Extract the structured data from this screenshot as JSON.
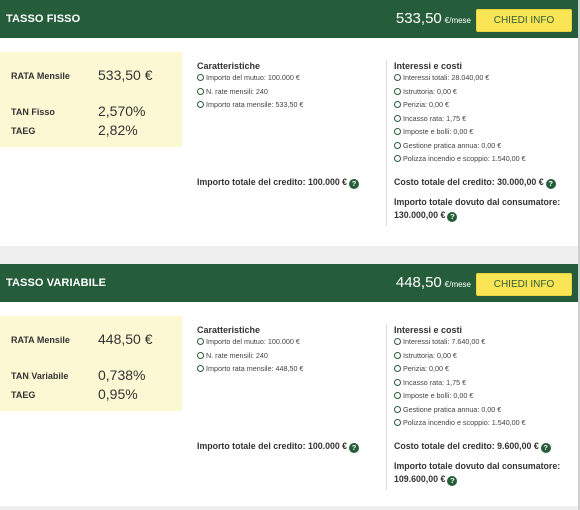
{
  "offers": [
    {
      "title": "TASSO FISSO",
      "monthly": "533,50",
      "unit": "€/mese",
      "cta": "CHIEDI INFO",
      "rate_label": "RATA Mensile",
      "rate_value": "533,50 €",
      "tan_label": "TAN Fisso",
      "tan_value": "2,570%",
      "taeg_label": "TAEG",
      "taeg_value": "2,82%",
      "features_title": "Caratteristiche",
      "features": [
        "Importo del mutuo: 100.000 €",
        "N. rate mensili: 240",
        "Importo rata mensile: 533,50 €"
      ],
      "credit_total": "Importo totale del credito: 100.000 €",
      "costs_title": "Interessi e costi",
      "costs": [
        "Interessi totali: 28.040,00 €",
        "Istruttoria: 0,00 €",
        "Perizia: 0,00 €",
        "Incasso rata: 1,75 €",
        "Imposte e bolli: 0,00 €",
        "Gestione pratica annua: 0,00 €",
        "Polizza incendio e scoppio: 1.540,00 €"
      ],
      "cost_total": "Costo totale del credito: 30.000,00 €",
      "due_label": "Importo totale dovuto dal consumatore:",
      "due_value": "130.000,00 €"
    },
    {
      "title": "TASSO VARIABILE",
      "monthly": "448,50",
      "unit": "€/mese",
      "cta": "CHIEDI INFO",
      "rate_label": "RATA Mensile",
      "rate_value": "448,50 €",
      "tan_label": "TAN Variabile",
      "tan_value": "0,738%",
      "taeg_label": "TAEG",
      "taeg_value": "0,95%",
      "features_title": "Caratteristiche",
      "features": [
        "Importo del mutuo: 100.000 €",
        "N. rate mensili: 240",
        "Importo rata mensile: 448,50 €"
      ],
      "credit_total": "Importo totale del credito: 100.000 €",
      "costs_title": "Interessi e costi",
      "costs": [
        "Interessi totali: 7.640,00 €",
        "Istruttoria: 0,00 €",
        "Perizia: 0,00 €",
        "Incasso rata: 1,75 €",
        "Imposte e bolli: 0,00 €",
        "Gestione pratica annua: 0,00 €",
        "Polizza incendio e scoppio: 1.540,00 €"
      ],
      "cost_total": "Costo totale del credito: 9.600,00 €",
      "due_label": "Importo totale dovuto dal consumatore:",
      "due_value": "109.600,00 €"
    }
  ],
  "help_glyph": "?",
  "colors": {
    "header": "#255d3a",
    "cta": "#fbe555",
    "rate_box": "#fdf8d4"
  },
  "icons": {
    "check": "check-circle-icon",
    "help": "help-circle-icon"
  }
}
